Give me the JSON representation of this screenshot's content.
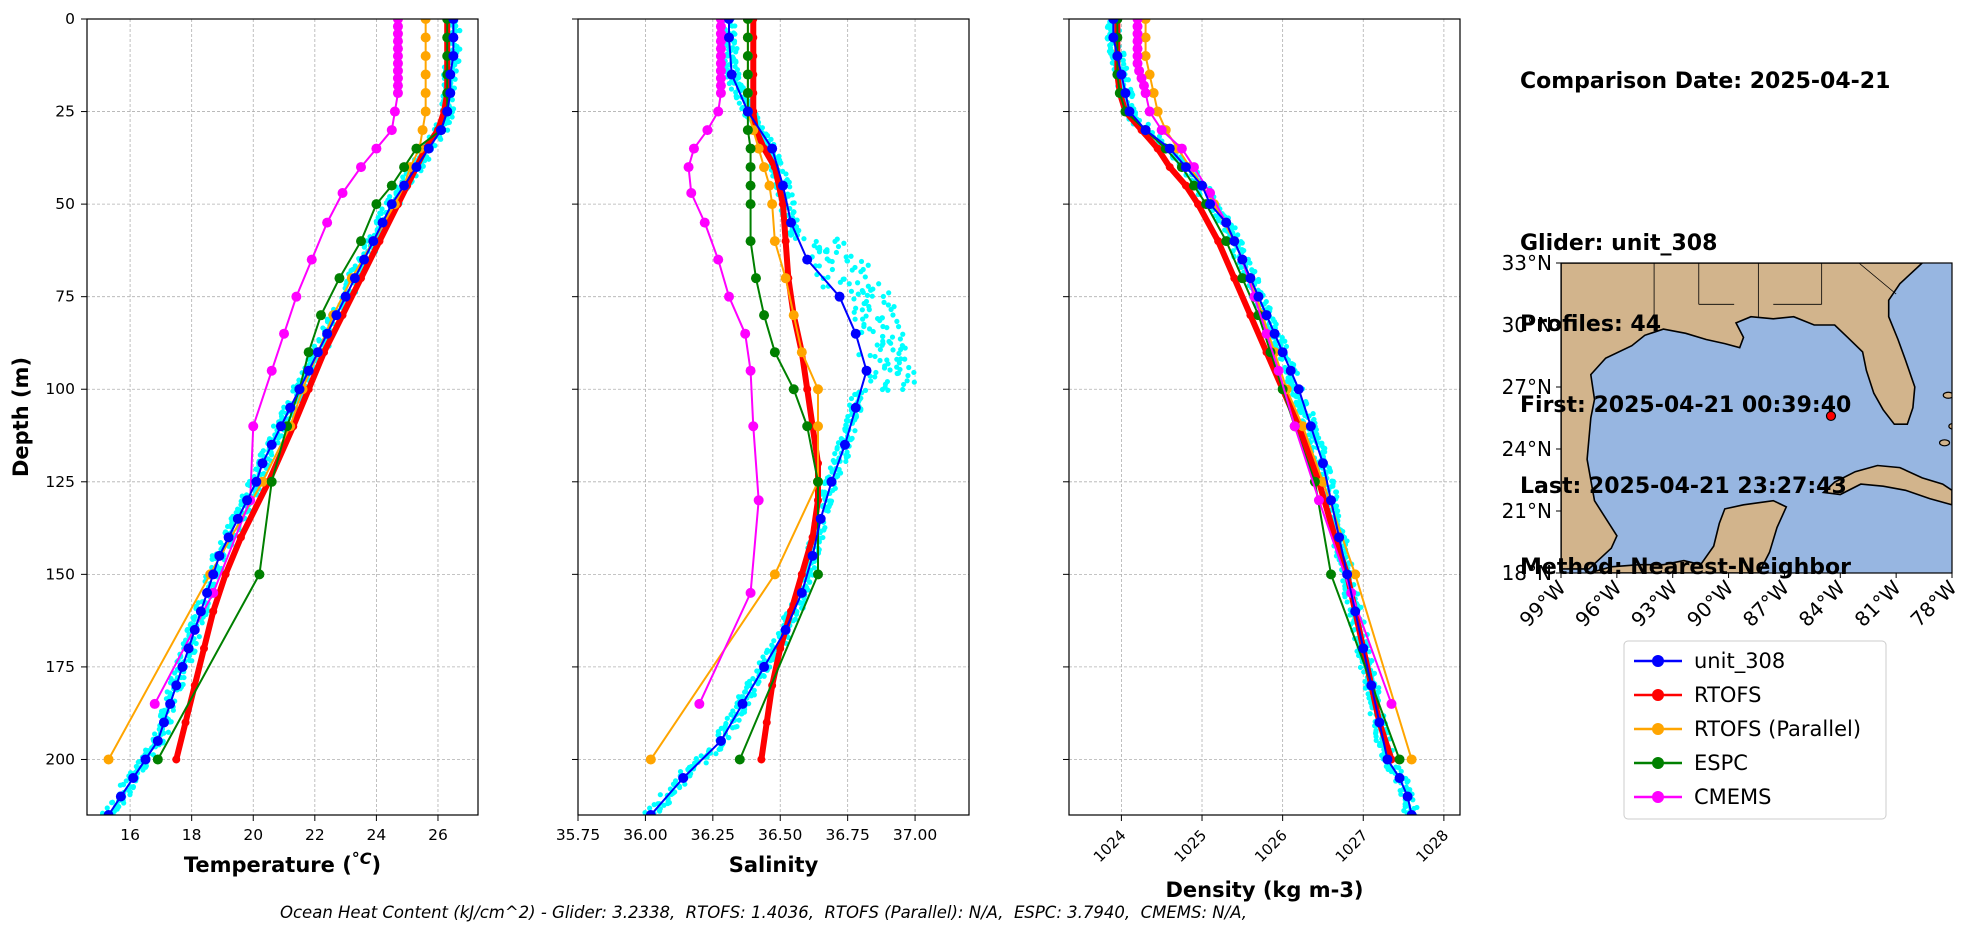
{
  "info": {
    "comparison_date": "Comparison Date: 2025-04-21",
    "glider": "Glider: unit_308",
    "profiles": "Profiles: 44",
    "first": "First: 2025-04-21 00:39:40",
    "last": "Last: 2025-04-21 23:27:43",
    "method": "Method: Nearest-Neighbor"
  },
  "footer": {
    "ohc": "Ocean Heat Content (kJ/cm^2) - Glider: 3.2338,  RTOFS: 1.4036,  RTOFS (Parallel): N/A,  ESPC: 3.7940,  CMEMS: N/A,"
  },
  "colors": {
    "glider": "#0000ff",
    "glider_scatter": "#00ffff",
    "rtofs": "#ff0000",
    "rtofs_parallel": "#ffa500",
    "espc": "#008000",
    "cmems": "#ff00ff",
    "land": "#d2b48c",
    "ocean": "#97b6e1"
  },
  "chart_data": [
    {
      "type": "line",
      "panel": "temperature",
      "xlabel": "Temperature (",
      "xlabel_unit": "°C",
      "xlabel_end": ")",
      "ylabel": "Depth (m)",
      "xlim": [
        14.6,
        27.3
      ],
      "ylim": [
        215,
        0
      ],
      "xticks": [
        "16",
        "18",
        "20",
        "22",
        "24",
        "26"
      ],
      "yticks": [
        "0",
        "25",
        "50",
        "75",
        "100",
        "125",
        "150",
        "175",
        "200"
      ],
      "grid": true,
      "series": [
        {
          "name": "unit_308",
          "key": "glider",
          "depth": [
            0,
            5,
            10,
            15,
            20,
            25,
            30,
            35,
            40,
            45,
            50,
            55,
            60,
            65,
            70,
            75,
            80,
            85,
            90,
            95,
            100,
            105,
            110,
            115,
            120,
            125,
            130,
            135,
            140,
            145,
            150,
            155,
            160,
            165,
            170,
            175,
            180,
            185,
            190,
            195,
            200,
            205,
            210,
            215
          ],
          "values": [
            26.5,
            26.5,
            26.5,
            26.4,
            26.4,
            26.3,
            26.1,
            25.7,
            25.3,
            24.9,
            24.5,
            24.2,
            23.9,
            23.6,
            23.3,
            23.0,
            22.7,
            22.4,
            22.1,
            21.8,
            21.5,
            21.2,
            20.9,
            20.6,
            20.3,
            20.1,
            19.8,
            19.5,
            19.2,
            18.9,
            18.7,
            18.5,
            18.3,
            18.1,
            17.9,
            17.7,
            17.5,
            17.3,
            17.1,
            16.9,
            16.5,
            16.1,
            15.7,
            15.3
          ]
        },
        {
          "name": "RTOFS",
          "key": "rtofs",
          "depth": [
            0,
            5,
            10,
            15,
            20,
            25,
            30,
            35,
            40,
            45,
            50,
            60,
            70,
            80,
            90,
            100,
            110,
            125,
            140,
            150,
            160,
            170,
            180,
            190,
            200
          ],
          "values": [
            26.3,
            26.3,
            26.3,
            26.3,
            26.3,
            26.2,
            26.0,
            25.6,
            25.3,
            25.0,
            24.7,
            24.1,
            23.5,
            22.9,
            22.3,
            21.8,
            21.3,
            20.5,
            19.6,
            19.1,
            18.7,
            18.4,
            18.1,
            17.8,
            17.5
          ]
        },
        {
          "name": "RTOFS (Parallel)",
          "key": "rtofs_parallel",
          "depth": [
            0,
            5,
            10,
            15,
            20,
            25,
            30,
            35,
            40,
            45,
            50,
            60,
            70,
            80,
            90,
            100,
            110,
            125,
            150,
            200
          ],
          "values": [
            25.6,
            25.6,
            25.6,
            25.6,
            25.6,
            25.6,
            25.5,
            25.4,
            25.1,
            24.9,
            24.6,
            23.9,
            23.2,
            22.6,
            22.1,
            21.6,
            21.2,
            20.3,
            18.6,
            15.3
          ]
        },
        {
          "name": "ESPC",
          "key": "espc",
          "depth": [
            0,
            5,
            10,
            15,
            20,
            25,
            30,
            35,
            40,
            45,
            50,
            60,
            70,
            80,
            90,
            100,
            110,
            125,
            150,
            200
          ],
          "values": [
            26.3,
            26.3,
            26.3,
            26.3,
            26.3,
            26.3,
            26.1,
            25.3,
            24.9,
            24.5,
            24.0,
            23.5,
            22.8,
            22.2,
            21.8,
            21.5,
            21.1,
            20.6,
            20.2,
            16.9
          ]
        },
        {
          "name": "CMEMS",
          "key": "cmems",
          "depth": [
            0,
            2,
            4,
            6,
            8,
            10,
            12,
            14,
            16,
            18,
            20,
            25,
            30,
            35,
            40,
            47,
            55,
            65,
            75,
            85,
            95,
            110,
            130,
            155,
            185
          ],
          "values": [
            24.7,
            24.7,
            24.7,
            24.7,
            24.7,
            24.7,
            24.7,
            24.7,
            24.7,
            24.7,
            24.7,
            24.6,
            24.5,
            24.0,
            23.5,
            22.9,
            22.4,
            21.9,
            21.4,
            21.0,
            20.6,
            20.0,
            19.9,
            18.7,
            16.8
          ]
        }
      ]
    },
    {
      "type": "line",
      "panel": "salinity",
      "xlabel": "Salinity",
      "xlim": [
        35.75,
        37.2
      ],
      "ylim": [
        215,
        0
      ],
      "xticks": [
        "35.75",
        "36.00",
        "36.25",
        "36.50",
        "36.75",
        "37.00"
      ],
      "grid": true,
      "series": [
        {
          "name": "unit_308",
          "key": "glider",
          "depth": [
            0,
            5,
            15,
            25,
            35,
            45,
            55,
            65,
            75,
            85,
            95,
            105,
            115,
            125,
            135,
            145,
            155,
            165,
            175,
            185,
            195,
            205,
            215
          ],
          "values": [
            36.31,
            36.31,
            36.32,
            36.38,
            36.47,
            36.51,
            36.54,
            36.6,
            36.72,
            36.78,
            36.82,
            36.78,
            36.74,
            36.69,
            36.65,
            36.62,
            36.58,
            36.52,
            36.44,
            36.36,
            36.28,
            36.14,
            36.02
          ]
        },
        {
          "name": "RTOFS",
          "key": "rtofs",
          "depth": [
            0,
            5,
            10,
            15,
            20,
            25,
            30,
            35,
            40,
            50,
            60,
            70,
            80,
            90,
            100,
            110,
            120,
            130,
            140,
            150,
            160,
            170,
            180,
            190,
            200
          ],
          "values": [
            36.4,
            36.4,
            36.4,
            36.4,
            36.4,
            36.4,
            36.41,
            36.44,
            36.48,
            36.51,
            36.52,
            36.53,
            36.55,
            36.58,
            36.6,
            36.62,
            36.64,
            36.64,
            36.62,
            36.58,
            36.54,
            36.5,
            36.47,
            36.45,
            36.43
          ]
        },
        {
          "name": "RTOFS (Parallel)",
          "key": "rtofs_parallel",
          "depth": [
            0,
            5,
            10,
            15,
            20,
            25,
            30,
            35,
            40,
            45,
            50,
            60,
            70,
            80,
            90,
            100,
            110,
            125,
            150,
            200
          ],
          "values": [
            36.38,
            36.38,
            36.38,
            36.38,
            36.38,
            36.38,
            36.4,
            36.42,
            36.44,
            36.46,
            36.47,
            36.48,
            36.52,
            36.55,
            36.58,
            36.64,
            36.64,
            36.64,
            36.48,
            36.02
          ]
        },
        {
          "name": "ESPC",
          "key": "espc",
          "depth": [
            0,
            5,
            10,
            15,
            20,
            25,
            30,
            35,
            40,
            45,
            50,
            60,
            70,
            80,
            90,
            100,
            110,
            125,
            150,
            200
          ],
          "values": [
            36.38,
            36.38,
            36.38,
            36.38,
            36.38,
            36.38,
            36.38,
            36.39,
            36.39,
            36.39,
            36.39,
            36.39,
            36.41,
            36.44,
            36.48,
            36.55,
            36.6,
            36.64,
            36.64,
            36.35
          ]
        },
        {
          "name": "CMEMS",
          "key": "cmems",
          "depth": [
            0,
            2,
            4,
            6,
            8,
            10,
            12,
            14,
            16,
            18,
            20,
            25,
            30,
            35,
            40,
            47,
            55,
            65,
            75,
            85,
            95,
            110,
            130,
            155,
            185
          ],
          "values": [
            36.28,
            36.28,
            36.28,
            36.28,
            36.28,
            36.28,
            36.28,
            36.28,
            36.28,
            36.28,
            36.28,
            36.27,
            36.23,
            36.18,
            36.16,
            36.17,
            36.22,
            36.27,
            36.31,
            36.37,
            36.39,
            36.4,
            36.42,
            36.39,
            36.2
          ]
        }
      ]
    },
    {
      "type": "line",
      "panel": "density",
      "xlabel": "Density (kg m-3)",
      "xlim": [
        1023.35,
        1028.2
      ],
      "ylim": [
        215,
        0
      ],
      "xticks": [
        "1024",
        "1025",
        "1026",
        "1027",
        "1028"
      ],
      "grid": true,
      "series": [
        {
          "name": "unit_308",
          "key": "glider",
          "depth": [
            0,
            5,
            10,
            15,
            20,
            25,
            30,
            35,
            40,
            45,
            50,
            55,
            60,
            65,
            70,
            75,
            80,
            85,
            90,
            95,
            100,
            110,
            120,
            130,
            140,
            150,
            160,
            170,
            180,
            190,
            200,
            205,
            210,
            215
          ],
          "values": [
            1023.9,
            1023.9,
            1023.95,
            1024.0,
            1024.05,
            1024.1,
            1024.3,
            1024.6,
            1024.8,
            1025.0,
            1025.1,
            1025.3,
            1025.4,
            1025.5,
            1025.6,
            1025.7,
            1025.8,
            1025.9,
            1026.0,
            1026.1,
            1026.2,
            1026.35,
            1026.5,
            1026.6,
            1026.7,
            1026.8,
            1026.9,
            1027.0,
            1027.1,
            1027.2,
            1027.3,
            1027.45,
            1027.55,
            1027.6
          ]
        },
        {
          "name": "RTOFS",
          "key": "rtofs",
          "depth": [
            0,
            5,
            10,
            15,
            20,
            25,
            30,
            35,
            40,
            45,
            50,
            60,
            70,
            80,
            90,
            100,
            110,
            125,
            140,
            150,
            160,
            170,
            180,
            190,
            200
          ],
          "values": [
            1023.95,
            1023.95,
            1023.95,
            1023.95,
            1023.98,
            1024.05,
            1024.25,
            1024.45,
            1024.6,
            1024.8,
            1024.95,
            1025.2,
            1025.4,
            1025.6,
            1025.8,
            1026.0,
            1026.2,
            1026.45,
            1026.65,
            1026.8,
            1026.9,
            1027.0,
            1027.1,
            1027.2,
            1027.35
          ]
        },
        {
          "name": "RTOFS (Parallel)",
          "key": "rtofs_parallel",
          "depth": [
            0,
            5,
            10,
            15,
            20,
            25,
            30,
            35,
            40,
            45,
            50,
            60,
            70,
            80,
            90,
            100,
            110,
            125,
            150,
            200
          ],
          "values": [
            1024.3,
            1024.3,
            1024.3,
            1024.35,
            1024.4,
            1024.45,
            1024.55,
            1024.7,
            1024.85,
            1025.0,
            1025.15,
            1025.4,
            1025.6,
            1025.75,
            1025.9,
            1026.05,
            1026.25,
            1026.5,
            1026.9,
            1027.6
          ]
        },
        {
          "name": "ESPC",
          "key": "espc",
          "depth": [
            0,
            5,
            10,
            15,
            20,
            25,
            30,
            35,
            40,
            45,
            50,
            60,
            70,
            80,
            90,
            100,
            110,
            125,
            150,
            200
          ],
          "values": [
            1023.95,
            1023.95,
            1023.95,
            1023.95,
            1023.98,
            1024.05,
            1024.3,
            1024.55,
            1024.75,
            1024.9,
            1025.05,
            1025.3,
            1025.5,
            1025.7,
            1025.85,
            1026.0,
            1026.15,
            1026.4,
            1026.6,
            1027.45
          ]
        },
        {
          "name": "CMEMS",
          "key": "cmems",
          "depth": [
            0,
            2,
            4,
            6,
            8,
            10,
            12,
            14,
            16,
            18,
            20,
            25,
            30,
            35,
            40,
            47,
            55,
            65,
            75,
            85,
            95,
            110,
            130,
            155,
            185
          ],
          "values": [
            1024.2,
            1024.2,
            1024.2,
            1024.2,
            1024.2,
            1024.2,
            1024.2,
            1024.22,
            1024.25,
            1024.28,
            1024.3,
            1024.35,
            1024.5,
            1024.75,
            1024.9,
            1025.1,
            1025.3,
            1025.5,
            1025.65,
            1025.8,
            1025.95,
            1026.15,
            1026.45,
            1026.85,
            1027.35
          ]
        }
      ]
    },
    {
      "type": "map",
      "panel": "location",
      "xticks": [
        "99°W",
        "96°W",
        "93°W",
        "90°W",
        "87°W",
        "84°W",
        "81°W",
        "78°W"
      ],
      "yticks": [
        "33°N",
        "30°N",
        "27°N",
        "24°N",
        "21°N",
        "18°N"
      ],
      "lon_range": [
        -99,
        -78
      ],
      "lat_range": [
        18,
        33
      ],
      "glider_position": {
        "lon": -84.5,
        "lat": 25.6
      }
    }
  ],
  "legend": [
    {
      "label": "unit_308",
      "key": "glider"
    },
    {
      "label": "RTOFS",
      "key": "rtofs"
    },
    {
      "label": "RTOFS (Parallel)",
      "key": "rtofs_parallel"
    },
    {
      "label": "ESPC",
      "key": "espc"
    },
    {
      "label": "CMEMS",
      "key": "cmems"
    }
  ]
}
